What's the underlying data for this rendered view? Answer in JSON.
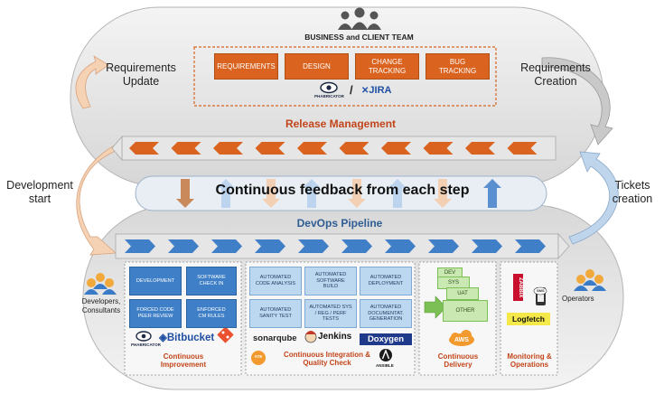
{
  "team": {
    "title": "BUSINESS and CLIENT TEAM"
  },
  "planning_boxes": [
    "REQUIREMENTS",
    "DESIGN",
    "CHANGE TRACKING",
    "BUG TRACKING"
  ],
  "planning_tools": {
    "phabricator": "PHABRICATOR",
    "separator": "/",
    "jira": "JIRA"
  },
  "side_labels": {
    "requirements_update": "Requirements Update",
    "requirements_creation": "Requirements Creation",
    "development_start": "Development start",
    "tickets_creation": "Tickets creation"
  },
  "release_management": "Release Management",
  "feedback": "Continuous feedback from each step",
  "devops_pipeline": "DevOps Pipeline",
  "roles": {
    "developers": "Developers, Consultants",
    "operators": "Operators"
  },
  "ci_improvement": {
    "boxes": [
      "DEVELOPMENT",
      "SOFTWARE CHECK IN",
      "FORCED CODE PEER REVIEW",
      "ENFORCED CM RULES"
    ],
    "logos": {
      "phabricator": "PHABRICATOR",
      "bitbucket": "Bitbucket"
    },
    "title": "Continuous Improvement"
  },
  "ci_quality": {
    "boxes": [
      "AUTOMATED CODE ANALYSIS",
      "AUTOMATED SOFTWARE BUILD",
      "AUTOMATED DEPLOYMENT",
      "AUTOMATED SANITY TEST",
      "AUTOMATED SYS / REG / PERF TESTS",
      "AUTOMATED DOCUMENTAT. GENERATION"
    ],
    "logos": {
      "sonarqube": "sonarqube",
      "jenkins": "Jenkins",
      "doxygen": "Doxygen",
      "ate": "ATE",
      "ansible": "ANSIBLE"
    },
    "title": "Continuous Integration & Quality Check"
  },
  "delivery": {
    "envs": [
      "DEV",
      "SYS",
      "UAT",
      "OTHER"
    ],
    "logo": "AWS",
    "title": "Continuous Delivery"
  },
  "monitoring": {
    "logos": {
      "zabbix": "ZABBIX",
      "sms": "SMS",
      "logfetch": "Logfetch"
    },
    "title": "Monitoring & Operations"
  },
  "colors": {
    "orange": "#d9631f",
    "blue": "#3f7fc7",
    "light_blue": "#bcd7f0",
    "green": "#c9e8b2",
    "title_red": "#c2451a",
    "title_blue": "#2f5d93"
  }
}
